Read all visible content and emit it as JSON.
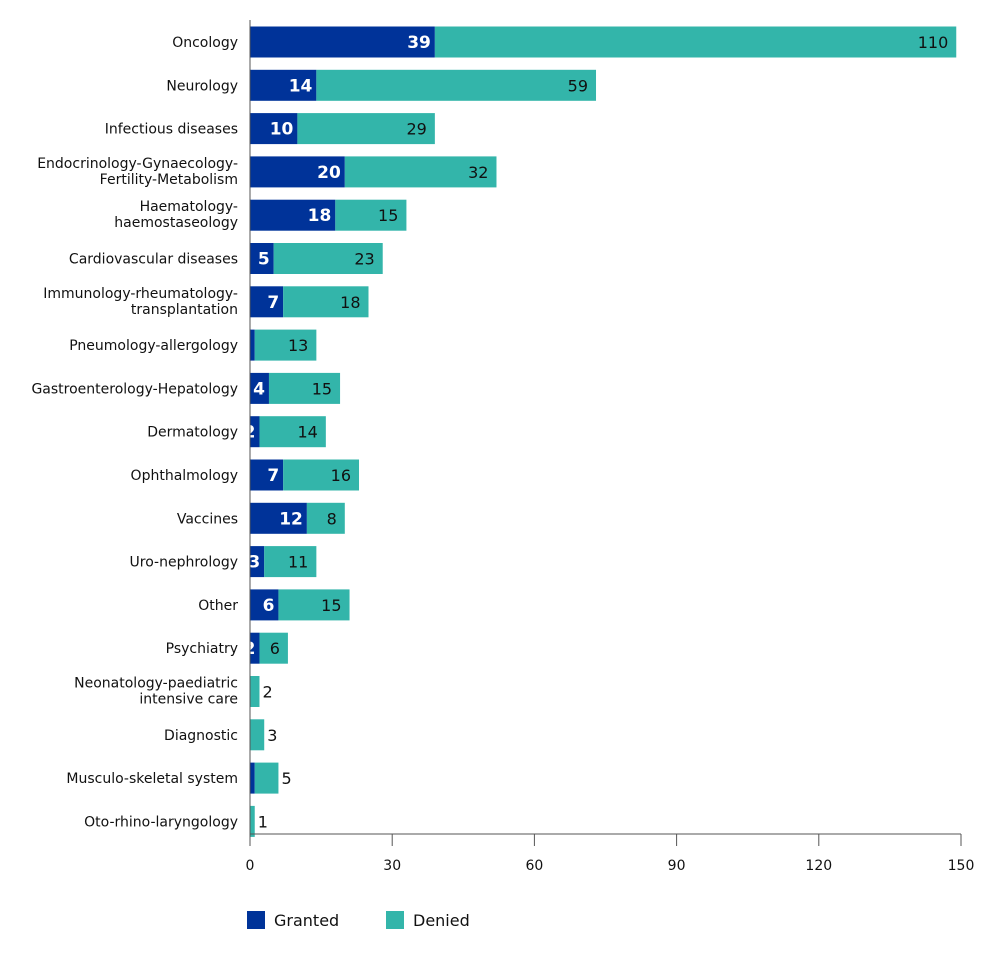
{
  "chart_data": {
    "type": "bar",
    "orientation": "horizontal",
    "stacked": true,
    "title": "",
    "xlabel": "",
    "ylabel": "",
    "xlim": [
      0,
      150
    ],
    "xticks": [
      0,
      30,
      60,
      90,
      120,
      150
    ],
    "grid": false,
    "legend_position": "bottom-left",
    "categories": [
      [
        "Oncology"
      ],
      [
        "Neurology"
      ],
      [
        "Infectious diseases"
      ],
      [
        "Endocrinology-Gynaecology-",
        "Fertility-Metabolism"
      ],
      [
        "Haematology-",
        "haemostaseology"
      ],
      [
        "Cardiovascular diseases"
      ],
      [
        "Immunology-rheumatology-",
        "transplantation"
      ],
      [
        "Pneumology-allergology"
      ],
      [
        "Gastroenterology-Hepatology"
      ],
      [
        "Dermatology"
      ],
      [
        "Ophthalmology"
      ],
      [
        "Vaccines"
      ],
      [
        "Uro-nephrology"
      ],
      [
        "Other"
      ],
      [
        "Psychiatry"
      ],
      [
        "Neonatology-paediatric",
        "intensive care"
      ],
      [
        "Diagnostic"
      ],
      [
        "Musculo-skeletal system"
      ],
      [
        "Oto-rhino-laryngology"
      ]
    ],
    "series": [
      {
        "name": "Granted",
        "color": "#003399",
        "values": [
          39,
          14,
          10,
          20,
          18,
          5,
          7,
          1,
          4,
          2,
          7,
          12,
          3,
          6,
          2,
          0,
          0,
          1,
          0
        ]
      },
      {
        "name": "Denied",
        "color": "#33b5aa",
        "values": [
          110,
          59,
          29,
          32,
          15,
          23,
          18,
          13,
          15,
          14,
          16,
          8,
          11,
          15,
          6,
          2,
          3,
          5,
          1
        ]
      }
    ]
  }
}
